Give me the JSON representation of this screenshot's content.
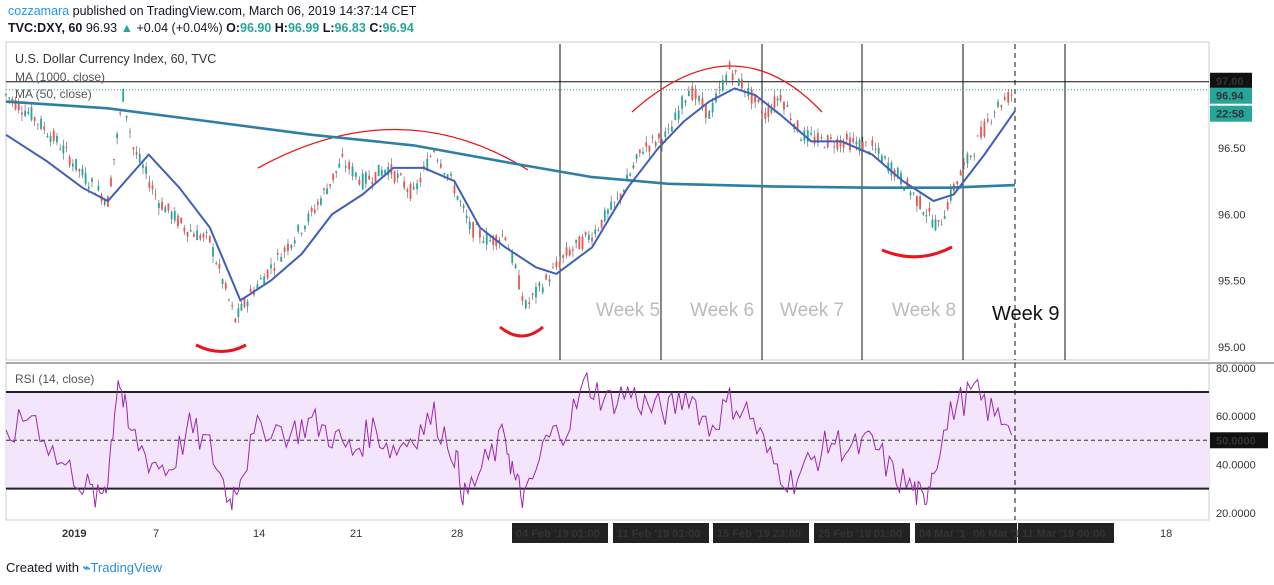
{
  "header": {
    "author": "cozzamara",
    "published": "published on TradingView.com, March 06, 2019 14:37:14 CET",
    "ticker": "TVC:DXY, 60",
    "last": "96.93",
    "change": "+0.04 (+0.04%)",
    "o_label": "O:",
    "o": "96.90",
    "h_label": "H:",
    "h": "96.99",
    "l_label": "L:",
    "l": "96.83",
    "c_label": "C:",
    "c": "96.94"
  },
  "legend": {
    "symbol": "U.S. Dollar Currency Index, 60, TVC",
    "ma1": "MA (1000, close)",
    "ma2": "MA (50, close)",
    "rsi": "RSI (14, close)"
  },
  "footer": {
    "created": "Created with",
    "brand": "TradingView"
  },
  "colors": {
    "candle_up": "#26a69a",
    "candle_down": "#ef5350",
    "ma1000": "#2e7fa8",
    "ma50": "#3f5fb8",
    "rsi": "#9c27b0",
    "annotation": "#e8151d"
  },
  "chart_data": [
    {
      "type": "line",
      "name": "price",
      "ylim": [
        94.9,
        97.3
      ],
      "yticks": [
        "97.00",
        "96.50",
        "96.00",
        "95.50",
        "95.00"
      ],
      "price_tags": {
        "level": "97.00",
        "last": "96.94",
        "countdown": "22:58"
      },
      "x_labels": [
        "2019",
        "7",
        "14",
        "21",
        "28",
        "04 Feb '19   01:00",
        "11 Feb '19   01:00",
        "15 Feb '19   23:00",
        "25 Feb '19   01:00",
        "04 Mar '1",
        "06 Mar '1",
        "11 Mar '19   00:00",
        "18"
      ],
      "week_labels": [
        "Week 5",
        "Week 6",
        "Week 7",
        "Week 8",
        "Week 9"
      ],
      "price_path": [
        [
          0,
          96.9
        ],
        [
          5,
          96.75
        ],
        [
          10,
          96.55
        ],
        [
          15,
          96.3
        ],
        [
          20,
          96.1
        ],
        [
          23,
          96.9
        ],
        [
          25,
          96.5
        ],
        [
          30,
          96.1
        ],
        [
          35,
          95.9
        ],
        [
          40,
          95.8
        ],
        [
          45,
          95.2
        ],
        [
          48,
          95.4
        ],
        [
          52,
          95.6
        ],
        [
          56,
          95.8
        ],
        [
          60,
          96.0
        ],
        [
          63,
          96.2
        ],
        [
          66,
          96.4
        ],
        [
          70,
          96.25
        ],
        [
          75,
          96.35
        ],
        [
          80,
          96.15
        ],
        [
          84,
          96.5
        ],
        [
          88,
          96.2
        ],
        [
          91,
          95.9
        ],
        [
          95,
          95.8
        ],
        [
          98,
          95.85
        ],
        [
          102,
          95.3
        ],
        [
          106,
          95.5
        ],
        [
          110,
          95.7
        ],
        [
          115,
          95.85
        ],
        [
          120,
          96.1
        ],
        [
          125,
          96.5
        ],
        [
          130,
          96.6
        ],
        [
          134,
          96.95
        ],
        [
          138,
          96.75
        ],
        [
          142,
          97.1
        ],
        [
          145,
          96.95
        ],
        [
          149,
          96.75
        ],
        [
          152,
          96.9
        ],
        [
          156,
          96.6
        ],
        [
          160,
          96.55
        ],
        [
          165,
          96.55
        ],
        [
          170,
          96.5
        ],
        [
          175,
          96.3
        ],
        [
          180,
          96.05
        ],
        [
          183,
          95.9
        ],
        [
          186,
          96.2
        ],
        [
          190,
          96.5
        ],
        [
          194,
          96.8
        ],
        [
          198,
          96.93
        ]
      ],
      "ma50_path": [
        [
          0,
          96.6
        ],
        [
          8,
          96.4
        ],
        [
          15,
          96.2
        ],
        [
          20,
          96.1
        ],
        [
          28,
          96.45
        ],
        [
          34,
          96.2
        ],
        [
          40,
          95.9
        ],
        [
          46,
          95.35
        ],
        [
          52,
          95.5
        ],
        [
          58,
          95.7
        ],
        [
          64,
          96.0
        ],
        [
          70,
          96.15
        ],
        [
          76,
          96.35
        ],
        [
          82,
          96.35
        ],
        [
          88,
          96.25
        ],
        [
          93,
          95.9
        ],
        [
          98,
          95.75
        ],
        [
          104,
          95.6
        ],
        [
          108,
          95.55
        ],
        [
          115,
          95.75
        ],
        [
          122,
          96.2
        ],
        [
          128,
          96.5
        ],
        [
          133,
          96.7
        ],
        [
          138,
          96.85
        ],
        [
          143,
          96.95
        ],
        [
          147,
          96.9
        ],
        [
          152,
          96.75
        ],
        [
          158,
          96.55
        ],
        [
          164,
          96.55
        ],
        [
          170,
          96.45
        ],
        [
          176,
          96.25
        ],
        [
          182,
          96.1
        ],
        [
          186,
          96.15
        ],
        [
          192,
          96.45
        ],
        [
          198,
          96.78
        ]
      ],
      "ma1000_path": [
        [
          0,
          96.85
        ],
        [
          20,
          96.8
        ],
        [
          40,
          96.7
        ],
        [
          60,
          96.6
        ],
        [
          80,
          96.52
        ],
        [
          100,
          96.38
        ],
        [
          115,
          96.28
        ],
        [
          130,
          96.23
        ],
        [
          150,
          96.21
        ],
        [
          170,
          96.2
        ],
        [
          185,
          96.2
        ],
        [
          198,
          96.22
        ]
      ]
    },
    {
      "type": "line",
      "name": "RSI (14, close)",
      "ylim": [
        17,
        82
      ],
      "yticks": [
        "80.0000",
        "60.0000",
        "50.0000",
        "40.0000",
        "20.0000"
      ],
      "bands": [
        70,
        30
      ],
      "mid": 50,
      "rsi_path": [
        [
          0,
          50
        ],
        [
          5,
          62
        ],
        [
          10,
          42
        ],
        [
          15,
          33
        ],
        [
          18,
          25
        ],
        [
          20,
          35
        ],
        [
          22,
          77
        ],
        [
          24,
          55
        ],
        [
          28,
          42
        ],
        [
          32,
          38
        ],
        [
          36,
          55
        ],
        [
          40,
          47
        ],
        [
          44,
          25
        ],
        [
          46,
          36
        ],
        [
          50,
          57
        ],
        [
          56,
          53
        ],
        [
          60,
          58
        ],
        [
          64,
          52
        ],
        [
          68,
          45
        ],
        [
          72,
          55
        ],
        [
          76,
          46
        ],
        [
          80,
          52
        ],
        [
          84,
          60
        ],
        [
          88,
          45
        ],
        [
          90,
          26
        ],
        [
          94,
          40
        ],
        [
          98,
          52
        ],
        [
          100,
          32
        ],
        [
          102,
          25
        ],
        [
          106,
          50
        ],
        [
          110,
          56
        ],
        [
          114,
          74
        ],
        [
          118,
          66
        ],
        [
          122,
          70
        ],
        [
          126,
          64
        ],
        [
          130,
          62
        ],
        [
          134,
          70
        ],
        [
          138,
          55
        ],
        [
          142,
          66
        ],
        [
          146,
          61
        ],
        [
          150,
          42
        ],
        [
          154,
          33
        ],
        [
          158,
          41
        ],
        [
          162,
          50
        ],
        [
          166,
          46
        ],
        [
          170,
          49
        ],
        [
          174,
          36
        ],
        [
          178,
          30
        ],
        [
          180,
          24
        ],
        [
          182,
          40
        ],
        [
          186,
          64
        ],
        [
          190,
          70
        ],
        [
          194,
          60
        ],
        [
          198,
          58
        ]
      ]
    }
  ]
}
